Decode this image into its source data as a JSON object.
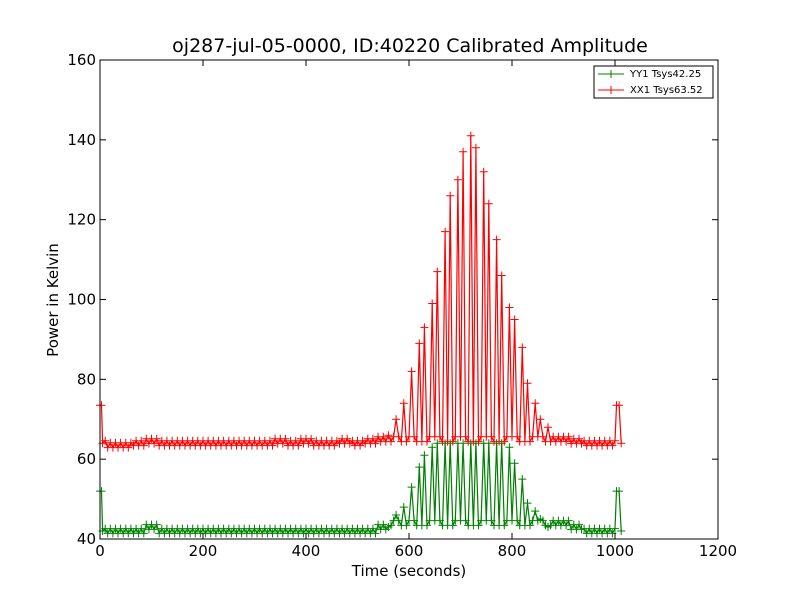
{
  "chart_data": {
    "type": "line",
    "title": "oj287-jul-05-0000, ID:40220 Calibrated Amplitude",
    "xlabel": "Time (seconds)",
    "ylabel": "Power in Kelvin",
    "xlim": [
      0,
      1200
    ],
    "ylim": [
      40,
      160
    ],
    "xticks": [
      0,
      200,
      400,
      600,
      800,
      1000,
      1200
    ],
    "yticks": [
      40,
      60,
      80,
      100,
      120,
      140,
      160
    ],
    "legend_position": "top-right",
    "grid": false,
    "sample_interval": 5,
    "pulse_times": [
      560,
      575,
      590,
      605,
      618,
      630,
      643,
      655,
      668,
      680,
      693,
      705,
      718,
      730,
      743,
      755,
      768,
      780,
      793,
      805,
      818,
      830,
      843,
      855,
      868
    ],
    "series": [
      {
        "name": "YY1 Tsys42.25",
        "color": "#008000",
        "start_spike": 52,
        "end_spike": 52,
        "baseline": [
          42,
          42,
          42,
          42,
          43,
          42,
          42,
          42,
          42,
          42,
          42,
          42,
          42,
          42,
          42,
          42,
          42,
          42,
          42,
          42,
          42,
          42,
          43,
          44,
          44,
          44,
          44,
          44,
          44,
          44,
          44,
          44,
          44,
          44,
          44,
          44,
          44,
          43,
          42,
          42,
          42,
          42
        ],
        "pulse_peaks": [
          43,
          46,
          48,
          53,
          58,
          61,
          63,
          64,
          64,
          64,
          64,
          64,
          64,
          64,
          64,
          64,
          64,
          64,
          63,
          59,
          55,
          49,
          47,
          45,
          43
        ]
      },
      {
        "name": "XX1 Tsys63.52",
        "color": "#ff0000",
        "start_spike": 73.5,
        "end_spike": 73.5,
        "baseline": [
          64,
          63.5,
          63.5,
          64,
          64.5,
          64,
          64,
          64,
          64,
          64,
          64,
          64,
          64,
          64,
          64.5,
          64,
          64.5,
          64,
          64,
          64.5,
          64,
          64.5,
          65,
          65,
          65,
          65,
          65,
          65,
          65,
          65,
          65,
          65,
          65,
          65,
          65,
          65,
          65,
          64.5,
          64,
          64,
          64,
          64
        ],
        "pulse_peaks": [
          66,
          70,
          74,
          82,
          89,
          93,
          99,
          107,
          117,
          126,
          130,
          137,
          141,
          138,
          132,
          124,
          115,
          106,
          98,
          95,
          88,
          79,
          74,
          70,
          68
        ]
      }
    ]
  }
}
